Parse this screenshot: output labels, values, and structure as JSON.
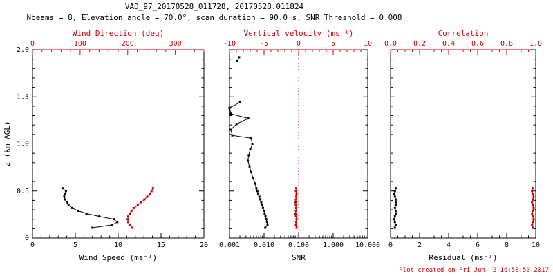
{
  "header": {
    "title": "VAD_97_20170528_011728, 20170528.011824",
    "subtitle": "Nbeams = 8, Elevation angle = 70.0°, scan duration = 90.0 s, SNR Threshold = 0.008"
  },
  "footer": {
    "created": "Plot created on Fri Jun  2 16:58:50 2017"
  },
  "chart_data": {
    "type": "line",
    "accent_color": "#cc0000",
    "foreground_color": "#000000",
    "panels": [
      {
        "name": "wind",
        "x_bottom": {
          "label": "Wind Speed (ms⁻¹)",
          "min": 0,
          "max": 20,
          "scale": "linear",
          "minor": 1,
          "ticks": [
            {
              "v": 0,
              "t": "0"
            },
            {
              "v": 5,
              "t": "5"
            },
            {
              "v": 10,
              "t": "10"
            },
            {
              "v": 15,
              "t": "15"
            },
            {
              "v": 20,
              "t": "20"
            }
          ]
        },
        "x_top": {
          "label": "Wind Direction (deg)",
          "min": 0,
          "max": 360,
          "scale": "linear",
          "minor": 20,
          "ticks": [
            {
              "v": 0,
              "t": "0"
            },
            {
              "v": 100,
              "t": "100"
            },
            {
              "v": 200,
              "t": "200"
            },
            {
              "v": 300,
              "t": "300"
            }
          ]
        },
        "y": {
          "label": "z (km AGL)",
          "min": 0,
          "max": 2,
          "minor": 0.1,
          "show_labels": true,
          "ticks": [
            {
              "v": 0,
              "t": "0"
            },
            {
              "v": 0.5,
              "t": "0.5"
            },
            {
              "v": 1,
              "t": "1.0"
            },
            {
              "v": 1.5,
              "t": "1.5"
            },
            {
              "v": 2,
              "t": "2.0"
            }
          ]
        },
        "series": [
          {
            "name": "wind-speed",
            "axis": "bottom",
            "color": "#000000",
            "z": [
              0.11,
              0.14,
              0.17,
              0.2,
              0.23,
              0.26,
              0.29,
              0.32,
              0.35,
              0.38,
              0.41,
              0.44,
              0.47,
              0.5,
              0.53
            ],
            "v": [
              7.0,
              9.3,
              9.9,
              9.5,
              7.8,
              6.3,
              5.3,
              4.6,
              4.2,
              4.0,
              3.8,
              3.7,
              3.8,
              3.9,
              3.5
            ]
          },
          {
            "name": "wind-direction",
            "axis": "top",
            "color": "#cc0000",
            "z": [
              0.11,
              0.14,
              0.17,
              0.2,
              0.23,
              0.26,
              0.29,
              0.32,
              0.35,
              0.38,
              0.41,
              0.44,
              0.47,
              0.5,
              0.53
            ],
            "v": [
              210,
              205,
              201,
              200,
              201,
              204,
              208,
              214,
              221,
              228,
              235,
              241,
              246,
              250,
              253
            ]
          }
        ]
      },
      {
        "name": "snr",
        "x_bottom": {
          "label": "SNR",
          "min": 0.001,
          "max": 10,
          "scale": "log",
          "ticks": [
            {
              "v": 0.001,
              "t": "0.001"
            },
            {
              "v": 0.01,
              "t": "0.010"
            },
            {
              "v": 0.1,
              "t": "0.100"
            },
            {
              "v": 1,
              "t": "1.000"
            },
            {
              "v": 10,
              "t": "10.000"
            }
          ]
        },
        "x_top": {
          "label": "Vertical velocity (ms⁻¹)",
          "min": -10,
          "max": 10,
          "scale": "linear",
          "minor": 1,
          "ticks": [
            {
              "v": -10,
              "t": "-10"
            },
            {
              "v": -5,
              "t": "-5"
            },
            {
              "v": 0,
              "t": "0"
            },
            {
              "v": 5,
              "t": "5"
            },
            {
              "v": 10,
              "t": "10"
            }
          ]
        },
        "y": {
          "label": "",
          "min": 0,
          "max": 2,
          "minor": 0.1,
          "show_labels": false,
          "ticks": [
            {
              "v": 0,
              "t": "0"
            },
            {
              "v": 0.5,
              "t": "0.5"
            },
            {
              "v": 1,
              "t": "1.0"
            },
            {
              "v": 1.5,
              "t": "1.5"
            },
            {
              "v": 2,
              "t": "2.0"
            }
          ]
        },
        "ref_line": {
          "axis": "top",
          "value": 0,
          "style": "dotted"
        },
        "series": [
          {
            "name": "snr-profile",
            "axis": "bottom",
            "color": "#000000",
            "z": [
              1.44,
              1.38,
              1.32,
              1.27,
              1.21,
              1.15,
              1.09,
              1.06,
              1.0,
              0.94,
              0.88,
              0.82,
              0.76,
              0.7,
              0.64,
              0.58,
              0.53,
              0.5,
              0.47,
              0.44,
              0.41,
              0.38,
              0.35,
              0.32,
              0.29,
              0.26,
              0.23,
              0.2,
              0.17,
              0.14,
              0.11
            ],
            "v": [
              0.002,
              0.001,
              0.0011,
              0.0035,
              0.0016,
              0.0011,
              0.0012,
              0.0042,
              0.0046,
              0.004,
              0.0036,
              0.0034,
              0.0038,
              0.0042,
              0.0048,
              0.0054,
              0.006,
              0.0064,
              0.0068,
              0.0073,
              0.0078,
              0.0083,
              0.0088,
              0.0093,
              0.0098,
              0.0104,
              0.011,
              0.0116,
              0.0122,
              0.0126,
              0.0108
            ]
          },
          {
            "name": "snr-upper",
            "axis": "bottom",
            "color": "#000000",
            "z": [
              1.92,
              1.88
            ],
            "v": [
              0.0019,
              0.0017
            ]
          },
          {
            "name": "vertical-velocity",
            "axis": "top",
            "color": "#cc0000",
            "z": [
              0.11,
              0.14,
              0.17,
              0.2,
              0.23,
              0.26,
              0.29,
              0.32,
              0.35,
              0.38,
              0.41,
              0.44,
              0.47,
              0.5,
              0.53
            ],
            "v": [
              -0.3,
              -0.4,
              -0.35,
              -0.3,
              -0.4,
              -0.45,
              -0.4,
              -0.35,
              -0.4,
              -0.45,
              -0.4,
              -0.35,
              -0.3,
              -0.4,
              -0.35
            ]
          }
        ]
      },
      {
        "name": "residual",
        "x_bottom": {
          "label": "Residual (ms⁻¹)",
          "min": 0,
          "max": 10,
          "scale": "linear",
          "minor": 0.5,
          "ticks": [
            {
              "v": 0,
              "t": "0"
            },
            {
              "v": 2,
              "t": "2"
            },
            {
              "v": 4,
              "t": "4"
            },
            {
              "v": 6,
              "t": "6"
            },
            {
              "v": 8,
              "t": "8"
            },
            {
              "v": 10,
              "t": "10"
            }
          ]
        },
        "x_top": {
          "label": "Correlation",
          "min": 0,
          "max": 1,
          "scale": "linear",
          "minor": 0.05,
          "ticks": [
            {
              "v": 0,
              "t": "0.0"
            },
            {
              "v": 0.2,
              "t": "0.2"
            },
            {
              "v": 0.4,
              "t": "0.4"
            },
            {
              "v": 0.6,
              "t": "0.6"
            },
            {
              "v": 0.8,
              "t": "0.8"
            },
            {
              "v": 1,
              "t": "1.0"
            }
          ]
        },
        "y": {
          "label": "",
          "min": 0,
          "max": 2,
          "minor": 0.1,
          "show_labels": false,
          "ticks": [
            {
              "v": 0,
              "t": "0"
            },
            {
              "v": 0.5,
              "t": "0.5"
            },
            {
              "v": 1,
              "t": "1.0"
            },
            {
              "v": 1.5,
              "t": "1.5"
            },
            {
              "v": 2,
              "t": "2.0"
            }
          ]
        },
        "series": [
          {
            "name": "residual",
            "axis": "bottom",
            "color": "#000000",
            "z": [
              0.11,
              0.14,
              0.17,
              0.2,
              0.23,
              0.26,
              0.29,
              0.32,
              0.35,
              0.38,
              0.41,
              0.44,
              0.47,
              0.5,
              0.53
            ],
            "v": [
              0.3,
              0.35,
              0.3,
              0.25,
              0.3,
              0.4,
              0.35,
              0.3,
              0.35,
              0.4,
              0.35,
              0.3,
              0.25,
              0.3,
              0.35
            ]
          },
          {
            "name": "correlation",
            "axis": "top",
            "color": "#cc0000",
            "z": [
              0.11,
              0.14,
              0.17,
              0.2,
              0.23,
              0.26,
              0.29,
              0.32,
              0.35,
              0.38,
              0.41,
              0.44,
              0.47,
              0.5,
              0.53
            ],
            "v": [
              0.98,
              0.975,
              0.98,
              0.985,
              0.98,
              0.975,
              0.98,
              0.985,
              0.98,
              0.975,
              0.98,
              0.985,
              0.98,
              0.975,
              0.98
            ]
          }
        ]
      }
    ]
  }
}
